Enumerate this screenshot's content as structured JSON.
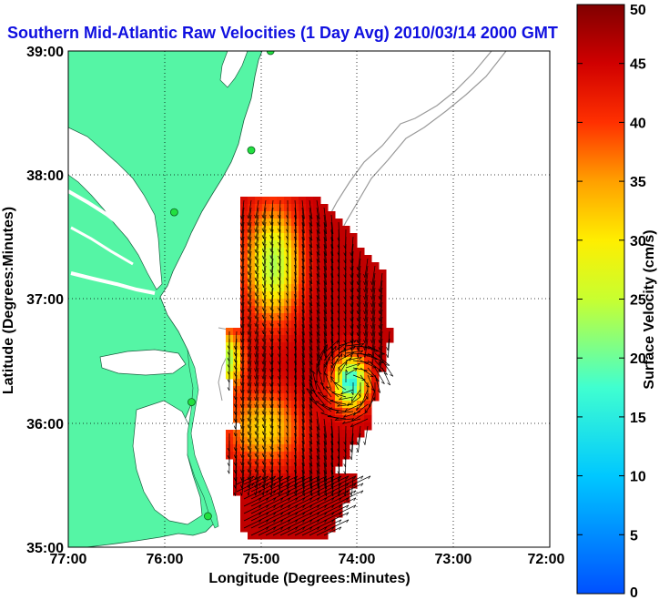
{
  "chart_data": {
    "type": "heatmap",
    "title": "Southern Mid-Atlantic Raw Velocities (1 Day Avg) 2010/03/14 2000 GMT",
    "xlabel": "Longitude (Degrees:Minutes)",
    "ylabel": "Latitude (Degrees:Minutes)",
    "x_ticks": [
      "77:00",
      "76:00",
      "75:00",
      "74:00",
      "73:00",
      "72:00"
    ],
    "y_ticks": [
      "39:00",
      "38:00",
      "37:00",
      "36:00",
      "35:00"
    ],
    "xlim": [
      -77,
      -72
    ],
    "ylim": [
      35,
      39
    ],
    "grid": true,
    "colorbar": {
      "label": "Surface Velocity (cm/s)",
      "ticks": [
        "0",
        "5",
        "10",
        "15",
        "20",
        "25",
        "30",
        "35",
        "40",
        "45",
        "50"
      ],
      "range": [
        0,
        50
      ],
      "colormap": "jet"
    },
    "colors": {
      "land": "#55f5a5",
      "water": "#ffffff",
      "title": "#1010e0",
      "stations": "#22e040",
      "vectors": "#000000",
      "bathymetry": "#999999"
    },
    "station_markers": [
      {
        "lon": -74.9,
        "lat": 39.0
      },
      {
        "lon": -75.1,
        "lat": 38.2
      },
      {
        "lon": -75.9,
        "lat": 37.7
      },
      {
        "lon": -75.72,
        "lat": 36.17
      },
      {
        "lon": -75.55,
        "lat": 35.25
      }
    ]
  }
}
